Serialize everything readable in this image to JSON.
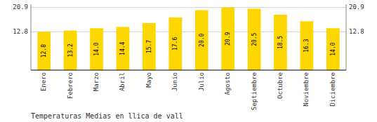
{
  "chart_data": {
    "type": "bar",
    "title": "Temperaturas Medias en llica de vall",
    "categories": [
      "Enero",
      "Febrero",
      "Marzo",
      "Abril",
      "Mayo",
      "Junio",
      "Julio",
      "Agosto",
      "Septiembre",
      "Octubre",
      "Noviembre",
      "Diciembre"
    ],
    "values": [
      12.8,
      13.2,
      14.0,
      14.4,
      15.7,
      17.6,
      20.0,
      20.9,
      20.5,
      18.5,
      16.3,
      14.0
    ],
    "value_labels": [
      "12.8",
      "13.2",
      "14.0",
      "14.4",
      "15.7",
      "17.6",
      "20.0",
      "20.9",
      "20.5",
      "18.5",
      "16.3",
      "14.0"
    ],
    "color": "#FFD700",
    "ylim": [
      0,
      22.0
    ],
    "yticks": [
      12.8,
      20.9
    ],
    "grid": true,
    "data_labels": true
  }
}
